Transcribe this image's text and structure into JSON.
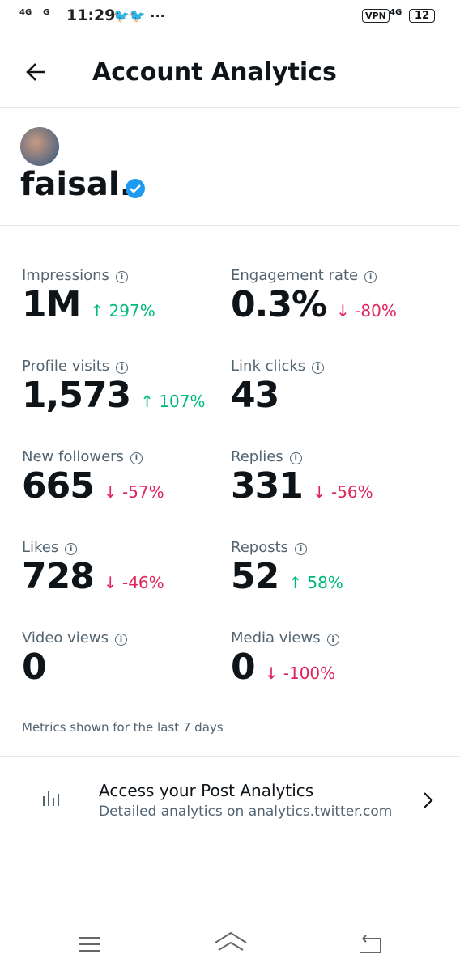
{
  "status_bar": {
    "network": [
      "4G",
      "G"
    ],
    "time": "11:29",
    "vpn": "VPN",
    "data_network": "4G",
    "battery": "12"
  },
  "header": {
    "title": "Account Analytics"
  },
  "profile": {
    "name": "faisal."
  },
  "metrics": [
    {
      "label": "Impressions",
      "value": "1M",
      "change": "297%",
      "trend": "up"
    },
    {
      "label": "Engagement rate",
      "value": "0.3%",
      "change": "-80%",
      "trend": "down"
    },
    {
      "label": "Profile visits",
      "value": "1,573",
      "change": "107%",
      "trend": "up"
    },
    {
      "label": "Link clicks",
      "value": "43"
    },
    {
      "label": "New followers",
      "value": "665",
      "change": "-57%",
      "trend": "down"
    },
    {
      "label": "Replies",
      "value": "331",
      "change": "-56%",
      "trend": "down"
    },
    {
      "label": "Likes",
      "value": "728",
      "change": "-46%",
      "trend": "down"
    },
    {
      "label": "Reposts",
      "value": "52",
      "change": "58%",
      "trend": "up"
    },
    {
      "label": "Video views",
      "value": "0"
    },
    {
      "label": "Media views",
      "value": "0",
      "change": "-100%",
      "trend": "down"
    }
  ],
  "note": "Metrics shown for the last 7 days",
  "post_analytics": {
    "title": "Access your Post Analytics",
    "subtitle": "Detailed analytics on analytics.twitter.com"
  }
}
